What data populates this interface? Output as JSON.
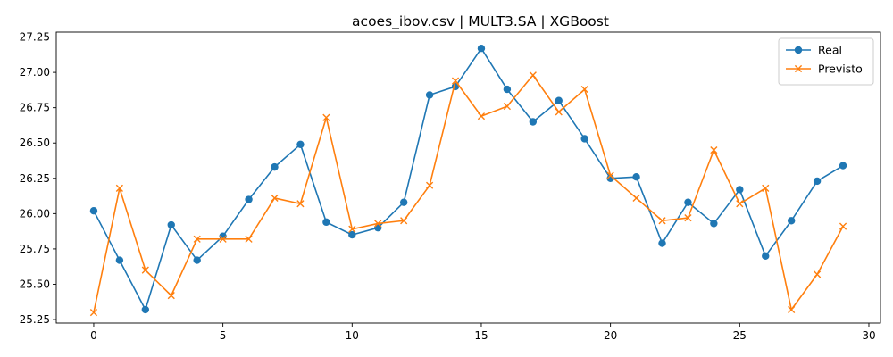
{
  "chart_data": {
    "type": "line",
    "title": "acoes_ibov.csv | MULT3.SA | XGBoost",
    "xlabel": "",
    "ylabel": "",
    "x": [
      0,
      1,
      2,
      3,
      4,
      5,
      6,
      7,
      8,
      9,
      10,
      11,
      12,
      13,
      14,
      15,
      16,
      17,
      18,
      19,
      20,
      21,
      22,
      23,
      24,
      25,
      26,
      27,
      28,
      29
    ],
    "xlim": [
      -1.45,
      30.45
    ],
    "ylim": [
      25.225,
      27.285
    ],
    "xticks": [
      0,
      5,
      10,
      15,
      20,
      25,
      30
    ],
    "yticks": [
      25.25,
      25.5,
      25.75,
      26.0,
      26.25,
      26.5,
      26.75,
      27.0,
      27.25
    ],
    "ytick_labels": [
      "25.25",
      "25.50",
      "25.75",
      "26.00",
      "26.25",
      "26.50",
      "26.75",
      "27.00",
      "27.25"
    ],
    "grid": false,
    "legend_position": "top-right",
    "series": [
      {
        "name": "Real",
        "color": "#1f77b4",
        "marker": "circle",
        "values": [
          26.02,
          25.67,
          25.32,
          25.92,
          25.67,
          25.84,
          26.1,
          26.33,
          26.49,
          25.94,
          25.85,
          25.9,
          26.08,
          26.84,
          26.9,
          27.17,
          26.88,
          26.65,
          26.8,
          26.53,
          26.25,
          26.26,
          25.79,
          26.08,
          25.93,
          26.17,
          25.7,
          25.95,
          26.23,
          26.34
        ]
      },
      {
        "name": "Previsto",
        "color": "#ff7f0e",
        "marker": "x",
        "values": [
          25.3,
          26.18,
          25.6,
          25.42,
          25.82,
          25.82,
          25.82,
          26.11,
          26.07,
          26.68,
          25.89,
          25.93,
          25.95,
          26.2,
          26.94,
          26.69,
          26.76,
          26.98,
          26.72,
          26.88,
          26.27,
          26.11,
          25.95,
          25.97,
          26.45,
          26.07,
          26.18,
          25.32,
          25.57,
          25.91
        ]
      }
    ]
  }
}
